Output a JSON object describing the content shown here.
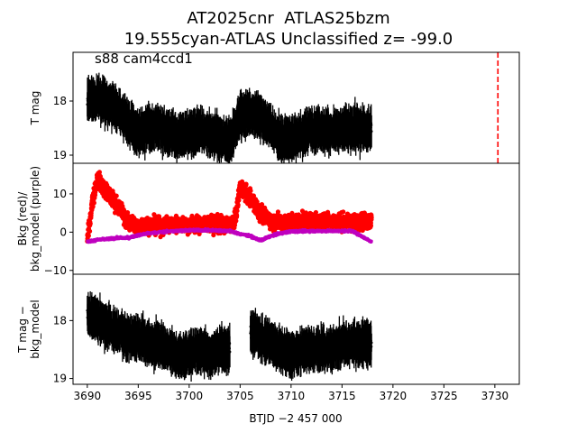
{
  "figure": {
    "title_line1": "AT2025cnr  ATLAS25bzm",
    "title_line2": "19.555cyan-ATLAS Unclassified z= -99.0",
    "annotation": "s88 cam4ccd1"
  },
  "chart_data": [
    {
      "type": "scatter",
      "panel": "top",
      "ylabel": "T mag",
      "y_inverted": true,
      "xlim": [
        3688.6,
        3732.4
      ],
      "ylim": [
        19.15,
        17.1
      ],
      "yticks": [
        18,
        19
      ],
      "ytick_labels": [
        "18",
        "19"
      ],
      "series": [
        {
          "color": "#000000",
          "marker": "point-with-errorbar",
          "x_range": [
            3690.0,
            3717.9
          ],
          "x": [
            3690.0,
            3691.0,
            3692.0,
            3693.0,
            3694.0,
            3695.0,
            3696.0,
            3697.0,
            3698.0,
            3699.0,
            3700.0,
            3701.0,
            3702.0,
            3703.0,
            3704.0,
            3704.5,
            3705.0,
            3706.0,
            3707.0,
            3708.0,
            3709.0,
            3710.0,
            3711.0,
            3712.0,
            3713.0,
            3714.0,
            3715.0,
            3716.0,
            3717.0,
            3717.9
          ],
          "y": [
            18.0,
            17.95,
            18.05,
            18.15,
            18.4,
            18.6,
            18.5,
            18.5,
            18.6,
            18.65,
            18.6,
            18.55,
            18.6,
            18.7,
            18.75,
            18.5,
            18.3,
            18.2,
            18.3,
            18.5,
            18.7,
            18.7,
            18.6,
            18.55,
            18.55,
            18.55,
            18.5,
            18.5,
            18.5,
            18.5
          ]
        }
      ],
      "reference_line": {
        "x": 3730.3,
        "color": "#ff0000",
        "style": "dashed"
      }
    },
    {
      "type": "scatter",
      "panel": "middle",
      "ylabel": "Bkg (red)/\nbkg_model (purple)",
      "xlim": [
        3688.6,
        3732.4
      ],
      "ylim": [
        -11,
        18
      ],
      "yticks": [
        10,
        0,
        -10
      ],
      "ytick_labels": [
        "10",
        "0",
        "−10"
      ],
      "series": [
        {
          "color": "#ff0000",
          "marker": "circle",
          "x_range": [
            3690.0,
            3717.9
          ],
          "x": [
            3690.0,
            3690.5,
            3691.0,
            3692.0,
            3693.0,
            3694.0,
            3695.0,
            3696.0,
            3697.0,
            3698.0,
            3700.0,
            3702.0,
            3704.0,
            3704.5,
            3705.0,
            3706.0,
            3707.0,
            3708.0,
            3709.0,
            3710.0,
            3711.0,
            3712.0,
            3714.0,
            3716.0,
            3717.9
          ],
          "y": [
            -2.0,
            8.0,
            14.0,
            10.0,
            7.0,
            2.5,
            1.5,
            2.0,
            1.5,
            2.0,
            2.0,
            2.0,
            2.0,
            3.0,
            12.0,
            9.0,
            5.0,
            3.0,
            2.5,
            2.5,
            3.0,
            3.0,
            3.0,
            2.5,
            3.0
          ]
        },
        {
          "color": "#bf00bf",
          "marker": "circle",
          "x_range": [
            3690.0,
            3717.9
          ],
          "x": [
            3690.0,
            3691.0,
            3692.0,
            3693.0,
            3694.0,
            3695.0,
            3696.0,
            3698.0,
            3700.0,
            3702.0,
            3704.0,
            3705.0,
            3706.0,
            3707.0,
            3708.0,
            3709.0,
            3710.0,
            3712.0,
            3714.0,
            3716.0,
            3717.9
          ],
          "y": [
            -2.5,
            -2.0,
            -1.8,
            -1.5,
            -1.5,
            -0.8,
            -0.3,
            0.2,
            0.5,
            0.5,
            0.3,
            -0.5,
            -1.0,
            -2.2,
            -1.0,
            -0.3,
            0.2,
            0.3,
            0.3,
            0.3,
            -2.5
          ]
        }
      ]
    },
    {
      "type": "scatter",
      "panel": "bottom",
      "ylabel": "T mag −\nbkg_model",
      "y_inverted": true,
      "xlabel": "BTJD −2 457 000",
      "xlim": [
        3688.6,
        3732.4
      ],
      "ylim": [
        19.1,
        17.2
      ],
      "yticks": [
        18,
        19
      ],
      "ytick_labels": [
        "18",
        "19"
      ],
      "xticks": [
        3690,
        3695,
        3700,
        3705,
        3710,
        3715,
        3720,
        3725,
        3730
      ],
      "xtick_labels": [
        "3690",
        "3695",
        "3700",
        "3705",
        "3710",
        "3715",
        "3720",
        "3725",
        "3730"
      ],
      "series": [
        {
          "color": "#000000",
          "marker": "point-with-errorbar",
          "x_range": [
            3690.0,
            3717.9
          ],
          "gap": [
            3704.0,
            3706.0
          ],
          "x": [
            3690.0,
            3691.0,
            3692.0,
            3693.0,
            3694.0,
            3695.0,
            3696.0,
            3697.0,
            3698.0,
            3699.0,
            3700.0,
            3701.0,
            3702.0,
            3703.0,
            3704.0,
            3706.0,
            3707.0,
            3708.0,
            3709.0,
            3710.0,
            3711.0,
            3712.0,
            3713.0,
            3714.0,
            3715.0,
            3716.0,
            3717.0,
            3717.9
          ],
          "y": [
            17.9,
            18.0,
            18.1,
            18.2,
            18.3,
            18.3,
            18.4,
            18.4,
            18.5,
            18.6,
            18.6,
            18.5,
            18.6,
            18.5,
            18.5,
            18.2,
            18.3,
            18.4,
            18.5,
            18.6,
            18.5,
            18.5,
            18.5,
            18.5,
            18.4,
            18.4,
            18.4,
            18.4
          ]
        }
      ]
    }
  ]
}
